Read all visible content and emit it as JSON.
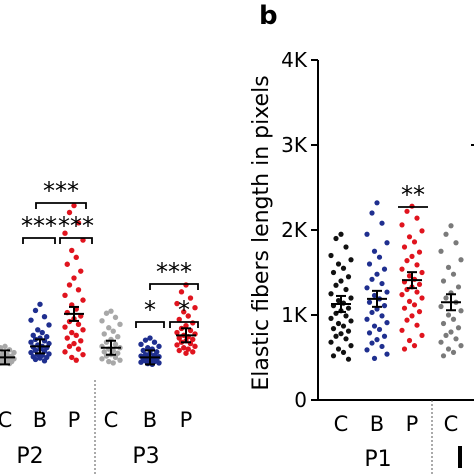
{
  "chart_data": [
    {
      "type": "scatter",
      "panel": "a",
      "groups": [
        "P2",
        "P3"
      ],
      "categories": [
        "C",
        "B",
        "P",
        "C",
        "B",
        "P"
      ],
      "colors": {
        "C": "#a8a8a8",
        "B": "#1f2f8f",
        "P": "#e0141e"
      },
      "series": [
        {
          "group": "P2",
          "category": "C",
          "mean": 400,
          "values": [
            560,
            540,
            510,
            480,
            470,
            460,
            440,
            430,
            420,
            410,
            400,
            400,
            390,
            380,
            370,
            360,
            350,
            340,
            330,
            320,
            310,
            300
          ]
        },
        {
          "group": "P2",
          "category": "B",
          "mean": 560,
          "values": [
            1170,
            1080,
            990,
            940,
            870,
            800,
            760,
            720,
            700,
            680,
            660,
            640,
            620,
            600,
            580,
            560,
            550,
            540,
            520,
            500,
            490,
            470,
            450,
            440,
            430,
            410,
            400,
            390,
            370,
            350
          ]
        },
        {
          "group": "P2",
          "category": "P",
          "mean": 1030,
          "values": [
            2600,
            2500,
            2350,
            2200,
            2100,
            1950,
            1850,
            1750,
            1650,
            1550,
            1450,
            1380,
            1300,
            1230,
            1160,
            1100,
            1050,
            1000,
            960,
            920,
            880,
            840,
            800,
            760,
            720,
            680,
            640,
            600,
            560,
            520,
            480,
            440,
            400,
            360
          ]
        },
        {
          "group": "P3",
          "category": "C",
          "mean": 540,
          "values": [
            1070,
            1040,
            980,
            930,
            880,
            830,
            780,
            740,
            700,
            660,
            620,
            590,
            560,
            540,
            520,
            500,
            480,
            460,
            440,
            420,
            400,
            380,
            360,
            340,
            320
          ]
        },
        {
          "group": "P3",
          "category": "B",
          "mean": 400,
          "values": [
            680,
            650,
            620,
            590,
            560,
            540,
            520,
            500,
            480,
            460,
            440,
            430,
            420,
            410,
            400,
            390,
            380,
            370,
            360,
            350,
            340,
            330,
            320,
            310,
            300
          ]
        },
        {
          "group": "P3",
          "category": "P",
          "mean": 720,
          "values": [
            1450,
            1350,
            1260,
            1180,
            1120,
            1060,
            1000,
            950,
            900,
            860,
            820,
            790,
            760,
            740,
            720,
            700,
            680,
            660,
            640,
            620,
            600,
            580,
            560,
            540,
            520,
            500,
            480,
            460
          ]
        }
      ],
      "significance": [
        {
          "label": "***",
          "between": [
            "C",
            "B"
          ],
          "group": "P2"
        },
        {
          "label": "***",
          "between": [
            "B",
            "P"
          ],
          "group": "P2"
        },
        {
          "label": "***",
          "between": [
            "C",
            "P"
          ],
          "group": "P2"
        },
        {
          "label": "*",
          "between": [
            "C",
            "B"
          ],
          "group": "P3"
        },
        {
          "label": "*",
          "between": [
            "B",
            "P"
          ],
          "group": "P3"
        },
        {
          "label": "***",
          "between": [
            "C",
            "P"
          ],
          "group": "P3"
        }
      ]
    },
    {
      "type": "scatter",
      "panel": "b",
      "title": "b",
      "ylabel": "Elastic fibers length in pixels",
      "ylim": [
        0,
        4000
      ],
      "yticks": [
        "0",
        "1K",
        "2K",
        "3K",
        "4K"
      ],
      "groups": [
        "P1"
      ],
      "categories": [
        "C",
        "B",
        "P",
        "C"
      ],
      "colors": {
        "C": "#111111",
        "B": "#1f2f8f",
        "P": "#e0141e",
        "C_next": "#7a7a7a"
      },
      "series": [
        {
          "group": "P1",
          "category": "C",
          "mean": 1130,
          "values": [
            1950,
            1900,
            1800,
            1700,
            1650,
            1600,
            1550,
            1500,
            1450,
            1400,
            1350,
            1300,
            1250,
            1200,
            1170,
            1140,
            1110,
            1080,
            1050,
            1020,
            990,
            960,
            930,
            900,
            870,
            840,
            810,
            780,
            750,
            720,
            680,
            640,
            600,
            560,
            520,
            480
          ]
        },
        {
          "group": "P1",
          "category": "B",
          "mean": 1190,
          "values": [
            2320,
            2200,
            2080,
            1950,
            1850,
            1750,
            1680,
            1600,
            1540,
            1480,
            1420,
            1370,
            1320,
            1270,
            1230,
            1190,
            1150,
            1110,
            1070,
            1030,
            990,
            950,
            910,
            870,
            830,
            790,
            750,
            710,
            670,
            630,
            590,
            540,
            490
          ]
        },
        {
          "group": "P1",
          "category": "P",
          "mean": 1410,
          "values": [
            2280,
            2220,
            2140,
            2060,
            1990,
            1920,
            1860,
            1800,
            1740,
            1690,
            1640,
            1590,
            1540,
            1500,
            1460,
            1420,
            1390,
            1360,
            1330,
            1300,
            1270,
            1240,
            1200,
            1160,
            1120,
            1080,
            1040,
            990,
            940,
            880,
            820,
            760,
            700,
            640,
            600
          ]
        },
        {
          "group": "P1+",
          "category": "C",
          "mean": 1150,
          "values": [
            2050,
            1950,
            1850,
            1750,
            1650,
            1560,
            1480,
            1400,
            1330,
            1260,
            1200,
            1150,
            1100,
            1050,
            1000,
            950,
            900,
            850,
            800,
            760,
            720,
            680,
            640,
            600,
            560,
            520
          ]
        }
      ],
      "significance": [
        {
          "label": "**",
          "between": [
            "B",
            "P"
          ],
          "group": "P1"
        }
      ]
    }
  ]
}
